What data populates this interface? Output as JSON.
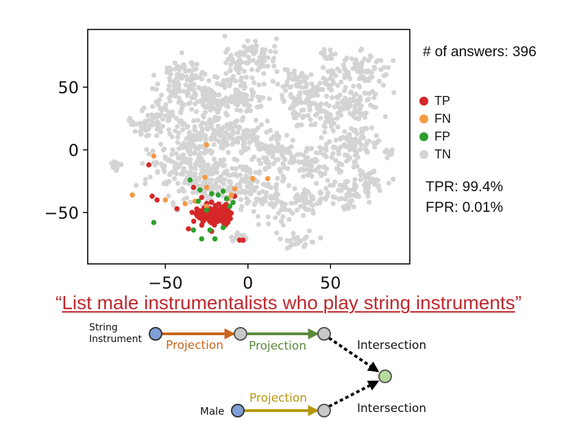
{
  "title": "",
  "answers_text": "# of answers: 396",
  "metrics": {
    "tpr": "TPR: 99.4%",
    "fpr": "FPR: 0.01%"
  },
  "query": {
    "open_quote": "“",
    "text": "List male instrumentalists who play string instruments",
    "close_quote": "”"
  },
  "colors": {
    "tp": "#d62728",
    "fn": "#f59a44",
    "fp": "#2ca02c",
    "tn": "#d4d4d4",
    "query": "#c0272d",
    "proj1": "#c8651b",
    "proj2": "#5a8a3a",
    "proj3": "#b8960c",
    "node_anchor": "#7f9fd8",
    "node_var": "#c8c8c8",
    "node_target": "#b6dc9c"
  },
  "chart_data": {
    "type": "scatter",
    "title": "",
    "xlabel": "",
    "ylabel": "",
    "xlim": [
      -97,
      98
    ],
    "ylim": [
      -91,
      96
    ],
    "x_ticks": [
      -50,
      0,
      50
    ],
    "y_ticks": [
      50,
      0,
      -50
    ],
    "x_tick_labels": [
      "−50",
      "0",
      "50"
    ],
    "y_tick_labels": [
      "50",
      "0",
      "−50"
    ],
    "grid": false,
    "legend_position": "right",
    "legend": [
      {
        "key": "tp",
        "label": "TP"
      },
      {
        "key": "fn",
        "label": "FN"
      },
      {
        "key": "fp",
        "label": "FP"
      },
      {
        "key": "tn",
        "label": "TN"
      }
    ],
    "series": [
      {
        "name": "TN",
        "key": "tn",
        "clusters": [
          {
            "center": [
              -8,
              72
            ],
            "spread": [
              3,
              4
            ]
          },
          {
            "center": [
              3,
              75
            ],
            "spread": [
              7,
              8
            ]
          },
          {
            "center": [
              -62,
              20
            ],
            "spread": [
              8,
              4
            ]
          },
          {
            "center": [
              -52,
              32
            ],
            "spread": [
              5,
              6
            ]
          },
          {
            "center": [
              -40,
              62
            ],
            "spread": [
              6,
              6
            ]
          },
          {
            "center": [
              -33,
              48
            ],
            "spread": [
              10,
              8
            ]
          },
          {
            "center": [
              -22,
              38
            ],
            "spread": [
              7,
              6
            ]
          },
          {
            "center": [
              -20,
              15
            ],
            "spread": [
              14,
              8
            ]
          },
          {
            "center": [
              -2,
              42
            ],
            "spread": [
              9,
              6
            ]
          },
          {
            "center": [
              -8,
              58
            ],
            "spread": [
              4,
              5
            ]
          },
          {
            "center": [
              30,
              52
            ],
            "spread": [
              8,
              7
            ]
          },
          {
            "center": [
              35,
              33
            ],
            "spread": [
              7,
              7
            ]
          },
          {
            "center": [
              60,
              42
            ],
            "spread": [
              10,
              13
            ]
          },
          {
            "center": [
              70,
              65
            ],
            "spread": [
              8,
              6
            ]
          },
          {
            "center": [
              65,
              5
            ],
            "spread": [
              9,
              8
            ]
          },
          {
            "center": [
              40,
              -12
            ],
            "spread": [
              10,
              8
            ]
          },
          {
            "center": [
              18,
              -5
            ],
            "spread": [
              8,
              7
            ]
          },
          {
            "center": [
              3,
              8
            ],
            "spread": [
              8,
              7
            ]
          },
          {
            "center": [
              -38,
              -8
            ],
            "spread": [
              12,
              12
            ]
          },
          {
            "center": [
              -22,
              -28
            ],
            "spread": [
              12,
              10
            ]
          },
          {
            "center": [
              0,
              -25
            ],
            "spread": [
              7,
              7
            ]
          },
          {
            "center": [
              15,
              -42
            ],
            "spread": [
              8,
              7
            ]
          },
          {
            "center": [
              32,
              -42
            ],
            "spread": [
              7,
              6
            ]
          },
          {
            "center": [
              60,
              -35
            ],
            "spread": [
              8,
              6
            ]
          },
          {
            "center": [
              72,
              -25
            ],
            "spread": [
              6,
              5
            ]
          },
          {
            "center": [
              30,
              -72
            ],
            "spread": [
              6,
              4
            ]
          },
          {
            "center": [
              -80,
              -12
            ],
            "spread": [
              2,
              2
            ]
          },
          {
            "center": [
              48,
              75
            ],
            "spread": [
              3,
              2
            ]
          },
          {
            "center": [
              -5,
              -70
            ],
            "spread": [
              3,
              2
            ]
          },
          {
            "center": [
              85,
              -2
            ],
            "spread": [
              2,
              2
            ]
          }
        ]
      },
      {
        "name": "TP",
        "key": "tp",
        "clusters": [
          {
            "center": [
              -20,
              -52
            ],
            "spread": [
              4,
              5
            ]
          },
          {
            "center": [
              -14,
              -52
            ],
            "spread": [
              2,
              4
            ]
          },
          {
            "center": [
              -27,
              -52
            ],
            "spread": [
              3,
              3
            ]
          }
        ],
        "outliers": [
          [
            -60,
            -12
          ],
          [
            -58,
            -37
          ],
          [
            -33,
            -30
          ],
          [
            -5,
            -72
          ],
          [
            -3,
            -72
          ],
          [
            -36,
            -63
          ],
          [
            -22,
            -65
          ],
          [
            -43,
            -47
          ],
          [
            -8,
            -37
          ],
          [
            -28,
            -38
          ],
          [
            -55,
            -40
          ]
        ]
      },
      {
        "name": "FN",
        "key": "fn",
        "points": [
          [
            -57,
            -5
          ],
          [
            -38,
            -43
          ],
          [
            -25,
            -30
          ],
          [
            -70,
            -36
          ],
          [
            -50,
            -40
          ],
          [
            -26,
            -22
          ],
          [
            -12,
            -39
          ],
          [
            -10,
            -36
          ],
          [
            -8,
            -31
          ],
          [
            -25,
            -45
          ],
          [
            3,
            -23
          ],
          [
            12,
            -23
          ],
          [
            -25,
            4
          ],
          [
            -32,
            -41
          ]
        ]
      },
      {
        "name": "FP",
        "key": "fp",
        "points": [
          [
            -57,
            -58
          ],
          [
            -35,
            -24
          ],
          [
            -29,
            -32
          ],
          [
            -22,
            -35
          ],
          [
            -18,
            -36
          ],
          [
            -15,
            -33
          ],
          [
            -13,
            -39
          ],
          [
            -30,
            -41
          ],
          [
            -28,
            -71
          ],
          [
            -20,
            -71
          ],
          [
            -33,
            -64
          ],
          [
            -15,
            -62
          ],
          [
            -23,
            -64
          ],
          [
            -11,
            -45
          ],
          [
            -9,
            -42
          ],
          [
            -25,
            -48
          ]
        ]
      }
    ]
  },
  "diagram": {
    "node_labels": {
      "string_instrument": [
        "String",
        "Instrument"
      ],
      "male": "Male"
    },
    "edges": [
      {
        "id": "proj1",
        "label": "Projection"
      },
      {
        "id": "proj2",
        "label": "Projection"
      },
      {
        "id": "proj3",
        "label": "Projection"
      },
      {
        "id": "inter1",
        "label": "Intersection"
      },
      {
        "id": "inter2",
        "label": "Intersection"
      }
    ]
  }
}
